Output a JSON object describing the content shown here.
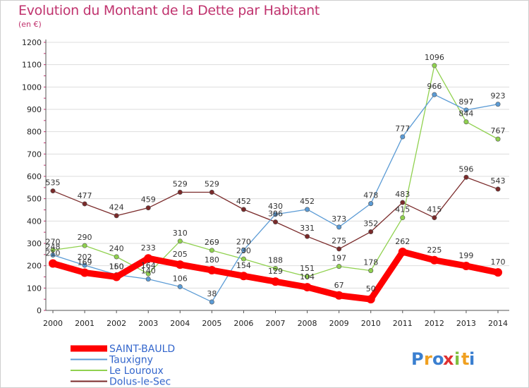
{
  "chart_data": {
    "type": "line",
    "title": "Evolution du Montant de la Dette par Habitant",
    "subtitle": "(en €)",
    "x": [
      "2000",
      "2001",
      "2002",
      "2003",
      "2004",
      "2005",
      "2006",
      "2007",
      "2008",
      "2009",
      "2010",
      "2011",
      "2012",
      "2013",
      "2014"
    ],
    "ylim": [
      0,
      1200
    ],
    "yticks": [
      0,
      100,
      200,
      300,
      400,
      500,
      600,
      700,
      800,
      900,
      1000,
      1100,
      1200
    ],
    "grid": "horizontal",
    "legend": "bottom-left",
    "series": [
      {
        "name": "SAINT-BAULD",
        "color": "#ff0000",
        "values": [
          210,
          169,
          150,
          233,
          205,
          180,
          154,
          129,
          104,
          67,
          50,
          262,
          225,
          199,
          170
        ]
      },
      {
        "name": "Tauxigny",
        "color": "#5b9bd5",
        "values": [
          248,
          202,
          160,
          140,
          106,
          38,
          270,
          430,
          452,
          373,
          478,
          777,
          966,
          897,
          923
        ]
      },
      {
        "name": "Le Louroux",
        "color": "#90d14f",
        "values": [
          270,
          290,
          240,
          164,
          310,
          269,
          230,
          188,
          151,
          197,
          178,
          415,
          1096,
          844,
          767
        ]
      },
      {
        "name": "Dolus-le-Sec",
        "color": "#7a2a2a",
        "values": [
          535,
          477,
          424,
          459,
          529,
          529,
          452,
          396,
          331,
          275,
          352,
          483,
          415,
          596,
          543
        ]
      }
    ]
  },
  "brand": {
    "letters": [
      "P",
      "r",
      "o",
      "x",
      "i",
      "t",
      "i"
    ],
    "colors": [
      "#3a7fd0",
      "#f0a020",
      "#3a7fd0",
      "#e03030",
      "#80c040",
      "#f0a020",
      "#3a7fd0"
    ]
  }
}
